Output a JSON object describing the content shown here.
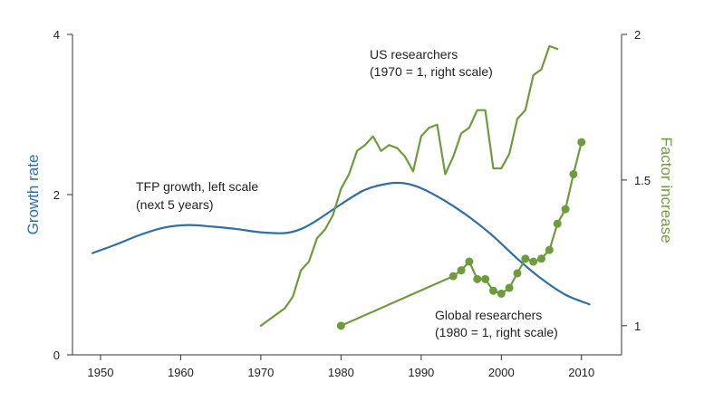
{
  "chart_data": {
    "type": "line",
    "title": "",
    "x_ticks": [
      1950,
      1960,
      1970,
      1980,
      1990,
      2000,
      2010
    ],
    "xlim": [
      1946.5,
      2015
    ],
    "left_axis": {
      "label": "Growth rate",
      "color": "#2f6ea6",
      "ylim": [
        0,
        4
      ],
      "ticks": [
        0,
        2,
        4
      ]
    },
    "right_axis": {
      "label": "Factor increase",
      "color": "#6e9c3d",
      "ylim": [
        0.9,
        2.0
      ],
      "ticks": [
        1,
        1.5,
        2
      ]
    },
    "annotations": {
      "us_line1": "US researchers",
      "us_line2": "(1970 = 1, right scale)",
      "tfp_line1": "TFP growth, left scale",
      "tfp_line2": "(next 5 years)",
      "global_line1": "Global researchers",
      "global_line2": "(1980 = 1, right scale)"
    },
    "series": [
      {
        "key": "tfp",
        "axis": "left",
        "color": "#2f6ea6",
        "markers": false,
        "x": [
          1949,
          1952,
          1955,
          1958,
          1961,
          1964,
          1967,
          1970,
          1973,
          1975,
          1977,
          1980,
          1983,
          1986,
          1988,
          1990,
          1993,
          1996,
          1999,
          2002,
          2005,
          2008,
          2011
        ],
        "y": [
          1.27,
          1.38,
          1.5,
          1.59,
          1.62,
          1.6,
          1.57,
          1.53,
          1.52,
          1.57,
          1.68,
          1.88,
          2.06,
          2.14,
          2.14,
          2.08,
          1.92,
          1.72,
          1.48,
          1.2,
          0.95,
          0.75,
          0.63
        ]
      },
      {
        "key": "us_researchers",
        "axis": "right",
        "color": "#6e9c3d",
        "markers": false,
        "x": [
          1970,
          1971,
          1972,
          1973,
          1974,
          1975,
          1976,
          1977,
          1978,
          1979,
          1980,
          1981,
          1982,
          1983,
          1984,
          1985,
          1986,
          1987,
          1988,
          1989,
          1990,
          1991,
          1992,
          1993,
          1994,
          1995,
          1996,
          1997,
          1998,
          1999,
          2000,
          2001,
          2002,
          2003,
          2004,
          2005,
          2006,
          2007
        ],
        "y": [
          1.0,
          1.02,
          1.04,
          1.06,
          1.1,
          1.19,
          1.22,
          1.3,
          1.33,
          1.38,
          1.47,
          1.52,
          1.6,
          1.62,
          1.65,
          1.6,
          1.62,
          1.61,
          1.58,
          1.53,
          1.65,
          1.68,
          1.69,
          1.52,
          1.58,
          1.66,
          1.68,
          1.74,
          1.74,
          1.54,
          1.54,
          1.59,
          1.71,
          1.74,
          1.86,
          1.88,
          1.96,
          1.95
        ]
      },
      {
        "key": "global_researchers",
        "axis": "right",
        "color": "#6e9c3d",
        "markers": true,
        "x": [
          1980,
          1994,
          1995,
          1996,
          1997,
          1998,
          1999,
          2000,
          2001,
          2002,
          2003,
          2004,
          2005,
          2006,
          2007,
          2008,
          2009,
          2010
        ],
        "y": [
          1.0,
          1.17,
          1.19,
          1.22,
          1.16,
          1.16,
          1.12,
          1.11,
          1.13,
          1.18,
          1.23,
          1.22,
          1.23,
          1.26,
          1.35,
          1.4,
          1.52,
          1.63
        ]
      }
    ]
  }
}
